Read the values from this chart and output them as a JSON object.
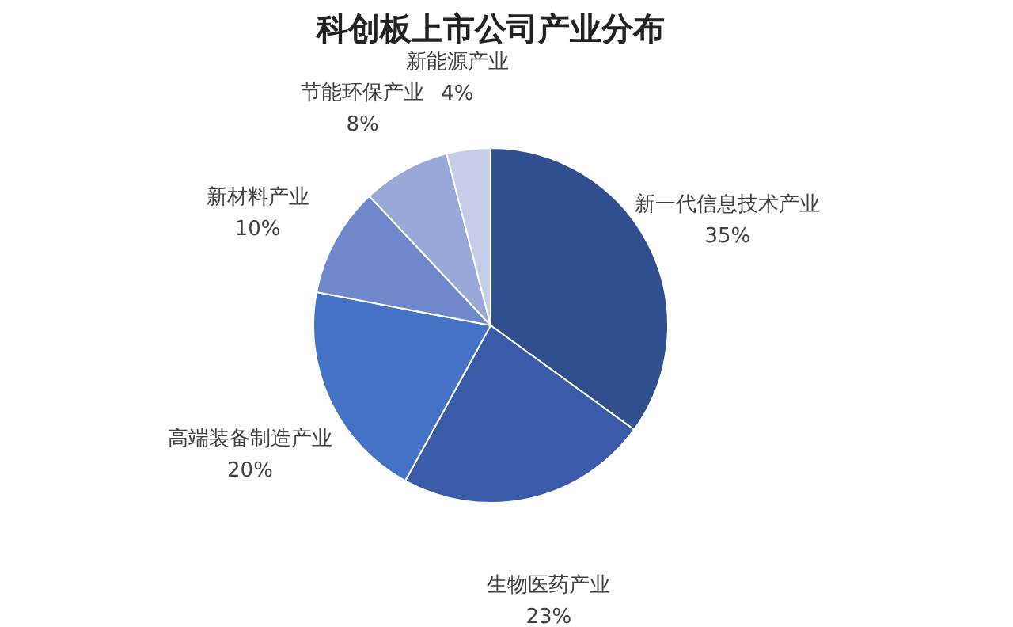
{
  "chart_data": {
    "type": "pie",
    "title": "科创板上市公司产业分布",
    "categories": [
      "新一代信息技术产业",
      "生物医药产业",
      "高端装备制造产业",
      "新材料产业",
      "节能环保产业",
      "新能源产业"
    ],
    "values": [
      35,
      23,
      20,
      10,
      8,
      4
    ],
    "value_labels": [
      "35%",
      "23%",
      "20%",
      "10%",
      "8%",
      "4%"
    ],
    "colors": [
      "#2f4f8f",
      "#3a5ca8",
      "#4472c4",
      "#7087cc",
      "#9aa8d8",
      "#c5cde8"
    ],
    "legend": false
  }
}
